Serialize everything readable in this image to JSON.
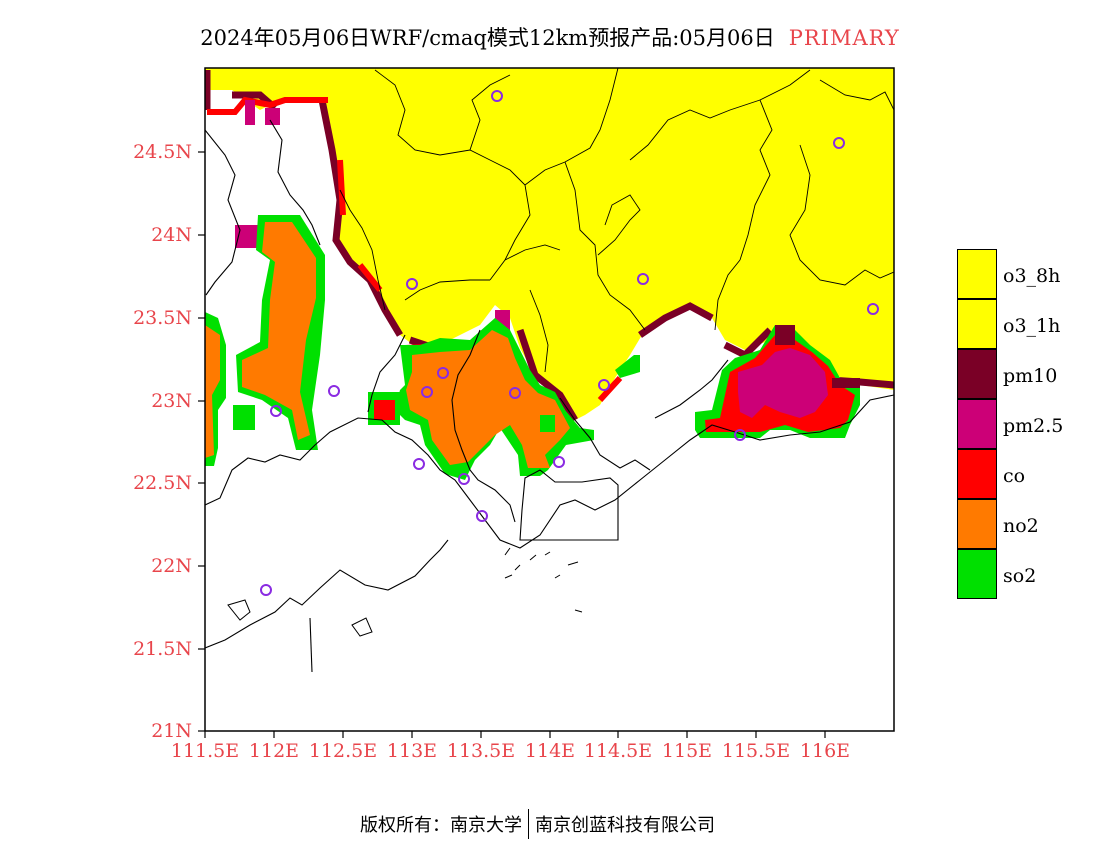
{
  "title": "2024年05月06日WRF/cmaq模式12km预报产品:05月06日",
  "title_tag": "PRIMARY",
  "colors": {
    "o3_8h": "#ffff00",
    "o3_1h": "#ffff00",
    "pm10": "#7a0026",
    "pm25": "#cc0077",
    "co": "#ff0000",
    "no2": "#ff7a00",
    "so2": "#00e000",
    "axis_label": "#e8454b",
    "station_marker": "#8a2be2"
  },
  "map": {
    "lat_ticks": [
      "24.5N",
      "24N",
      "23.5N",
      "23N",
      "22.5N",
      "22N",
      "21.5N",
      "21N"
    ],
    "lon_ticks": [
      "111.5E",
      "112E",
      "112.5E",
      "113E",
      "113.5E",
      "114E",
      "114.5E",
      "115E",
      "115.5E",
      "116E"
    ]
  },
  "legend": [
    {
      "label": "o3_8h",
      "color": "#ffff00"
    },
    {
      "label": "o3_1h",
      "color": "#ffff00"
    },
    {
      "label": "pm10",
      "color": "#7a0026"
    },
    {
      "label": "pm2.5",
      "color": "#cc0077"
    },
    {
      "label": "co",
      "color": "#ff0000"
    },
    {
      "label": "no2",
      "color": "#ff7a00"
    },
    {
      "label": "so2",
      "color": "#00e000"
    }
  ],
  "footer": {
    "left": "版权所有：南京大学",
    "right": "南京创蓝科技有限公司"
  }
}
